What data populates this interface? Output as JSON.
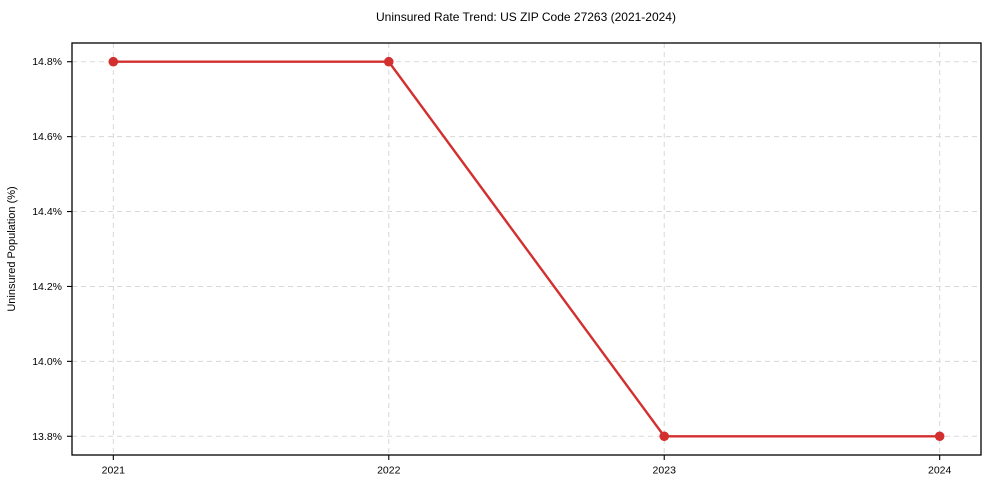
{
  "chart_data": {
    "type": "line",
    "title": "Uninsured Rate Trend: US ZIP Code 27263 (2021-2024)",
    "xlabel": "",
    "ylabel": "Uninsured Population (%)",
    "series": [
      {
        "name": "Uninsured Population (%)",
        "x": [
          2021,
          2022,
          2023,
          2024
        ],
        "values": [
          14.8,
          14.8,
          13.8,
          13.8
        ],
        "color": "#d32f2f",
        "marker": "circle"
      }
    ],
    "xlim": [
      2020.85,
      2024.15
    ],
    "ylim": [
      13.75,
      14.85
    ],
    "xticks": [
      {
        "value": 2021,
        "label": "2021"
      },
      {
        "value": 2022,
        "label": "2022"
      },
      {
        "value": 2023,
        "label": "2023"
      },
      {
        "value": 2024,
        "label": "2024"
      }
    ],
    "yticks": [
      {
        "value": 13.8,
        "label": "13.8%"
      },
      {
        "value": 14.0,
        "label": "14.0%"
      },
      {
        "value": 14.2,
        "label": "14.2%"
      },
      {
        "value": 14.4,
        "label": "14.4%"
      },
      {
        "value": 14.6,
        "label": "14.6%"
      },
      {
        "value": 14.8,
        "label": "14.8%"
      }
    ],
    "grid": true,
    "grid_style": "dashed",
    "legend": false,
    "colors": {
      "line": "#d32f2f",
      "grid": "#d8d8d8",
      "axis": "#000000",
      "background": "#ffffff",
      "text": "#000000"
    }
  }
}
